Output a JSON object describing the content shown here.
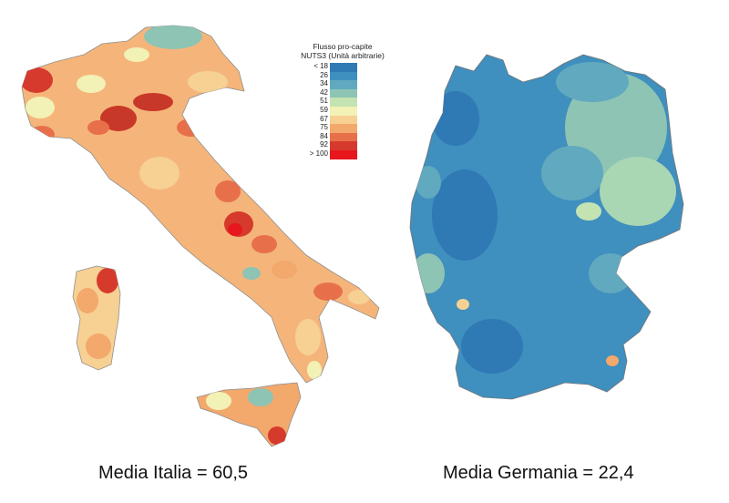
{
  "legend": {
    "title_line1": "Flusso pro-capite",
    "title_line2": "NUTS3 (Unità arbitrarie)",
    "items": [
      {
        "label": "< 18",
        "color": "#2f79b5"
      },
      {
        "label": "26",
        "color": "#3f8fbf"
      },
      {
        "label": "34",
        "color": "#61a9bf"
      },
      {
        "label": "42",
        "color": "#8dc4b4"
      },
      {
        "label": "51",
        "color": "#c4e3b2"
      },
      {
        "label": "59",
        "color": "#f2f1b6"
      },
      {
        "label": "67",
        "color": "#f7d093"
      },
      {
        "label": "75",
        "color": "#f3a86c"
      },
      {
        "label": "84",
        "color": "#e7704b"
      },
      {
        "label": "92",
        "color": "#d63a2c"
      },
      {
        "label": "> 100",
        "color": "#e8161d"
      }
    ]
  },
  "maps": {
    "italy": {
      "caption": "Media Italia = 60,5"
    },
    "germany": {
      "caption": "Media Germania = 22,4"
    }
  }
}
